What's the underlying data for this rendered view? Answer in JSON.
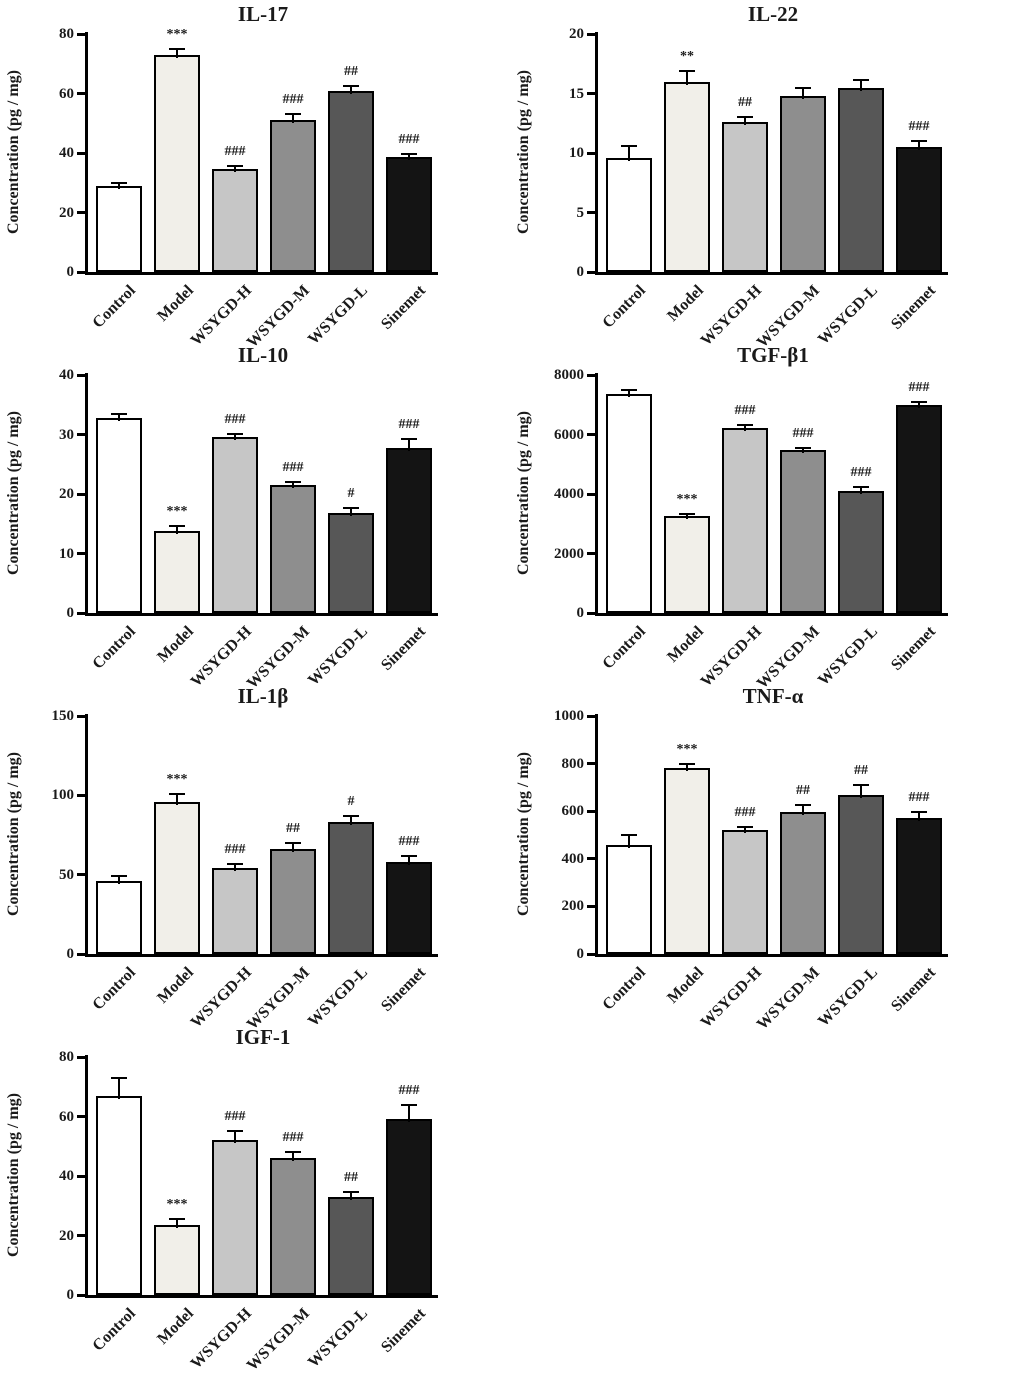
{
  "colors": {
    "bar_fills": [
      "#ffffff",
      "#f1efe9",
      "#c6c6c6",
      "#8e8e8e",
      "#575757",
      "#141414"
    ],
    "bar_border": "#000000",
    "axis": "#000000"
  },
  "chart_data": [
    {
      "type": "bar",
      "title": "IL-17",
      "ylabel": "Concentration (pg / mg)",
      "ylim": [
        0,
        80
      ],
      "yticks": [
        0,
        20,
        40,
        60,
        80
      ],
      "categories": [
        "Control",
        "Model",
        "WSYGD-H",
        "WSYGD-M",
        "WSYGD-L",
        "Sinemet"
      ],
      "values": [
        29,
        73,
        34.5,
        51,
        61,
        38.5
      ],
      "errors": [
        1,
        2,
        1,
        2,
        1.5,
        1
      ],
      "sig": [
        "",
        "***",
        "###",
        "###",
        "##",
        "###"
      ]
    },
    {
      "type": "bar",
      "title": "IL-22",
      "ylabel": "Concentration (pg / mg)",
      "ylim": [
        0,
        20
      ],
      "yticks": [
        0,
        5,
        10,
        15,
        20
      ],
      "categories": [
        "Control",
        "Model",
        "WSYGD-H",
        "WSYGD-M",
        "WSYGD-L",
        "Sinemet"
      ],
      "values": [
        9.6,
        16,
        12.6,
        14.8,
        15.5,
        10.5
      ],
      "errors": [
        1,
        0.9,
        0.4,
        0.7,
        0.6,
        0.5
      ],
      "sig": [
        "",
        "**",
        "##",
        "",
        "",
        "###"
      ]
    },
    {
      "type": "bar",
      "title": "IL-10",
      "ylabel": "Concentration (pg / mg)",
      "ylim": [
        0,
        40
      ],
      "yticks": [
        0,
        10,
        20,
        30,
        40
      ],
      "categories": [
        "Control",
        "Model",
        "WSYGD-H",
        "WSYGD-M",
        "WSYGD-L",
        "Sinemet"
      ],
      "values": [
        32.7,
        13.7,
        29.5,
        21.5,
        16.8,
        27.8
      ],
      "errors": [
        0.8,
        1,
        0.6,
        0.6,
        0.8,
        1.5
      ],
      "sig": [
        "",
        "***",
        "###",
        "###",
        "#",
        "###"
      ]
    },
    {
      "type": "bar",
      "title": "TGF-β1",
      "ylabel": "Concentration (pg / mg)",
      "ylim": [
        0,
        8000
      ],
      "yticks": [
        0,
        2000,
        4000,
        6000,
        8000
      ],
      "categories": [
        "Control",
        "Model",
        "WSYGD-H",
        "WSYGD-M",
        "WSYGD-L",
        "Sinemet"
      ],
      "values": [
        7350,
        3270,
        6220,
        5480,
        4100,
        7000
      ],
      "errors": [
        150,
        70,
        100,
        80,
        150,
        100
      ],
      "sig": [
        "",
        "***",
        "###",
        "###",
        "###",
        "###"
      ]
    },
    {
      "type": "bar",
      "title": "IL-1β",
      "ylabel": "Concentration (pg / mg)",
      "ylim": [
        0,
        150
      ],
      "yticks": [
        0,
        50,
        100,
        150
      ],
      "categories": [
        "Control",
        "Model",
        "WSYGD-H",
        "WSYGD-M",
        "WSYGD-L",
        "Sinemet"
      ],
      "values": [
        46,
        96,
        54,
        66,
        83,
        58
      ],
      "errors": [
        3,
        5,
        3,
        4,
        4,
        4
      ],
      "sig": [
        "",
        "***",
        "###",
        "##",
        "#",
        "###"
      ]
    },
    {
      "type": "bar",
      "title": "TNF-α",
      "ylabel": "Concentration (pg / mg)",
      "ylim": [
        0,
        1000
      ],
      "yticks": [
        0,
        200,
        400,
        600,
        800,
        1000
      ],
      "categories": [
        "Control",
        "Model",
        "WSYGD-H",
        "WSYGD-M",
        "WSYGD-L",
        "Sinemet"
      ],
      "values": [
        460,
        780,
        520,
        595,
        670,
        570
      ],
      "errors": [
        40,
        20,
        15,
        30,
        40,
        25
      ],
      "sig": [
        "",
        "***",
        "###",
        "##",
        "##",
        "###"
      ]
    },
    {
      "type": "bar",
      "title": "IGF-1",
      "ylabel": "Concentration (pg / mg)",
      "ylim": [
        0,
        80
      ],
      "yticks": [
        0,
        20,
        40,
        60,
        80
      ],
      "categories": [
        "Control",
        "Model",
        "WSYGD-H",
        "WSYGD-M",
        "WSYGD-L",
        "Sinemet"
      ],
      "values": [
        67,
        23.5,
        52,
        46,
        33,
        59
      ],
      "errors": [
        6,
        2,
        3,
        2,
        1.5,
        5
      ],
      "sig": [
        "",
        "***",
        "###",
        "###",
        "##",
        "###"
      ]
    }
  ]
}
